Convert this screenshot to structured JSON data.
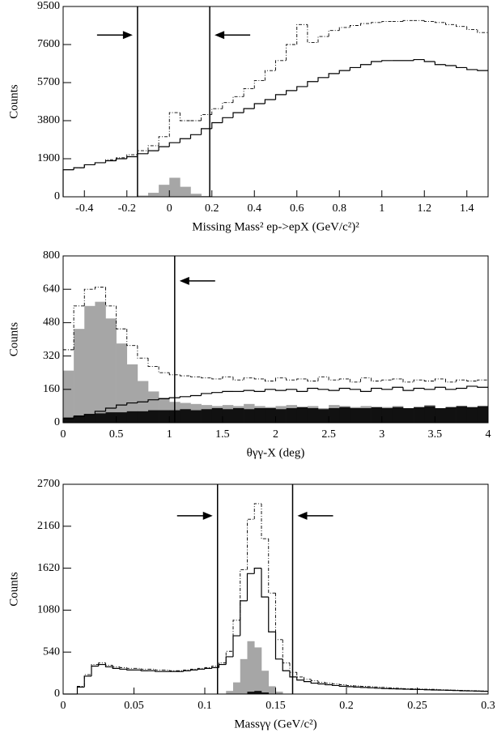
{
  "chart_data": [
    {
      "type": "histogram",
      "y_label": "Counts",
      "x_label": "Missing Mass² ep->epX (GeV/c²)²",
      "xlim": [
        -0.5,
        1.5
      ],
      "ylim": [
        0,
        9500
      ],
      "xticks": [
        -0.4,
        -0.2,
        0,
        0.2,
        0.4,
        0.6,
        0.8,
        1,
        1.2,
        1.4
      ],
      "yticks": [
        0,
        1900,
        3800,
        5700,
        7600,
        9500
      ],
      "cut_lines": [
        -0.15,
        0.19
      ],
      "bins": [
        -0.5,
        -0.45,
        -0.4,
        -0.35,
        -0.3,
        -0.25,
        -0.2,
        -0.15,
        -0.1,
        -0.05,
        0,
        0.05,
        0.1,
        0.15,
        0.2,
        0.25,
        0.3,
        0.35,
        0.4,
        0.45,
        0.5,
        0.55,
        0.6,
        0.65,
        0.7,
        0.75,
        0.8,
        0.85,
        0.9,
        0.95,
        1,
        1.05,
        1.1,
        1.15,
        1.2,
        1.25,
        1.3,
        1.35,
        1.4,
        1.45,
        1.5
      ],
      "series": [
        {
          "style": "fill",
          "color": "#a6a6a6",
          "values": [
            0,
            0,
            0,
            0,
            0,
            0,
            20,
            60,
            200,
            600,
            950,
            500,
            150,
            40,
            10,
            0,
            0,
            0,
            0,
            0,
            0,
            0,
            0,
            0,
            0,
            0,
            0,
            0,
            0,
            0,
            0,
            0,
            0,
            0,
            0,
            0,
            0,
            0,
            0,
            0
          ]
        },
        {
          "style": "fill",
          "color": "#111111",
          "values": [
            0,
            0,
            0,
            0,
            0,
            0,
            0,
            0,
            0,
            10,
            20,
            20,
            20,
            20,
            20,
            20,
            20,
            20,
            20,
            20,
            20,
            20,
            20,
            20,
            20,
            20,
            20,
            20,
            20,
            20,
            20,
            20,
            20,
            20,
            20,
            20,
            20,
            20,
            20,
            20
          ]
        },
        {
          "style": "solid",
          "color": "#000000",
          "values": [
            1350,
            1450,
            1600,
            1700,
            1800,
            1900,
            2000,
            2150,
            2300,
            2500,
            2700,
            2900,
            3100,
            3400,
            3700,
            3950,
            4200,
            4400,
            4650,
            4850,
            5100,
            5300,
            5500,
            5750,
            5950,
            6150,
            6300,
            6450,
            6600,
            6750,
            6800,
            6800,
            6800,
            6850,
            6750,
            6600,
            6550,
            6450,
            6350,
            6300
          ]
        },
        {
          "style": "dashdot",
          "color": "#000000",
          "values": [
            1350,
            1450,
            1600,
            1700,
            1850,
            1950,
            2100,
            2300,
            2550,
            3000,
            4200,
            3800,
            3800,
            4100,
            4400,
            4700,
            5000,
            5400,
            5800,
            6300,
            6800,
            7600,
            8600,
            7700,
            8000,
            8300,
            8450,
            8550,
            8650,
            8700,
            8750,
            8750,
            8800,
            8800,
            8750,
            8700,
            8600,
            8500,
            8350,
            8200
          ]
        }
      ]
    },
    {
      "type": "histogram",
      "y_label": "Counts",
      "x_label": "θγγ-X (deg)",
      "xlim": [
        0,
        4
      ],
      "ylim": [
        0,
        800
      ],
      "xticks": [
        0,
        0.5,
        1,
        1.5,
        2,
        2.5,
        3,
        3.5,
        4
      ],
      "yticks": [
        0,
        160,
        320,
        480,
        640,
        800
      ],
      "cut_lines": [
        1.05
      ],
      "bins": [
        0,
        0.1,
        0.2,
        0.3,
        0.4,
        0.5,
        0.6,
        0.7,
        0.8,
        0.9,
        1,
        1.1,
        1.2,
        1.3,
        1.4,
        1.5,
        1.6,
        1.7,
        1.8,
        1.9,
        2,
        2.1,
        2.2,
        2.3,
        2.4,
        2.5,
        2.6,
        2.7,
        2.8,
        2.9,
        3,
        3.1,
        3.2,
        3.3,
        3.4,
        3.5,
        3.6,
        3.7,
        3.8,
        3.9,
        4
      ],
      "series": [
        {
          "style": "fill",
          "color": "#a6a6a6",
          "values": [
            250,
            450,
            560,
            580,
            500,
            380,
            280,
            200,
            150,
            120,
            100,
            95,
            90,
            85,
            80,
            85,
            80,
            90,
            80,
            75,
            80,
            85,
            75,
            80,
            70,
            85,
            80,
            75,
            80,
            70,
            75,
            80,
            70,
            75,
            85,
            70,
            75,
            80,
            70,
            75
          ]
        },
        {
          "style": "fill",
          "color": "#111111",
          "values": [
            25,
            35,
            40,
            45,
            50,
            50,
            55,
            55,
            60,
            60,
            60,
            65,
            60,
            65,
            70,
            65,
            70,
            65,
            70,
            70,
            65,
            70,
            75,
            70,
            65,
            70,
            75,
            70,
            70,
            75,
            70,
            75,
            70,
            75,
            80,
            70,
            75,
            80,
            75,
            80
          ]
        },
        {
          "style": "solid",
          "color": "#000000",
          "values": [
            20,
            30,
            40,
            55,
            70,
            85,
            95,
            100,
            110,
            115,
            120,
            125,
            130,
            140,
            145,
            150,
            150,
            155,
            150,
            160,
            155,
            160,
            150,
            165,
            160,
            155,
            165,
            160,
            150,
            165,
            160,
            170,
            155,
            165,
            160,
            170,
            160,
            165,
            175,
            170
          ]
        },
        {
          "style": "dashdot",
          "color": "#000000",
          "values": [
            350,
            560,
            640,
            650,
            560,
            450,
            370,
            310,
            270,
            240,
            230,
            225,
            220,
            215,
            210,
            220,
            205,
            215,
            210,
            200,
            215,
            205,
            210,
            200,
            220,
            205,
            210,
            195,
            215,
            200,
            205,
            210,
            195,
            205,
            200,
            210,
            195,
            205,
            200,
            205
          ]
        }
      ]
    },
    {
      "type": "histogram",
      "y_label": "Counts",
      "x_label": "Massγγ (GeV/c²)",
      "xlim": [
        0,
        0.3
      ],
      "ylim": [
        0,
        2700
      ],
      "xticks": [
        0,
        0.05,
        0.1,
        0.15,
        0.2,
        0.25,
        0.3
      ],
      "yticks": [
        0,
        540,
        1080,
        1620,
        2160,
        2700
      ],
      "cut_lines": [
        0.109,
        0.162
      ],
      "bins": [
        0,
        0.005,
        0.01,
        0.015,
        0.02,
        0.025,
        0.03,
        0.035,
        0.04,
        0.045,
        0.05,
        0.055,
        0.06,
        0.065,
        0.07,
        0.075,
        0.08,
        0.085,
        0.09,
        0.095,
        0.1,
        0.105,
        0.11,
        0.115,
        0.12,
        0.125,
        0.13,
        0.135,
        0.14,
        0.145,
        0.15,
        0.155,
        0.16,
        0.165,
        0.17,
        0.175,
        0.18,
        0.185,
        0.19,
        0.195,
        0.2,
        0.205,
        0.21,
        0.215,
        0.22,
        0.225,
        0.23,
        0.235,
        0.24,
        0.245,
        0.25,
        0.255,
        0.26,
        0.265,
        0.27,
        0.275,
        0.28,
        0.285,
        0.29,
        0.295,
        0.3
      ],
      "series": [
        {
          "style": "fill",
          "color": "#a6a6a6",
          "values": [
            0,
            0,
            0,
            0,
            0,
            0,
            0,
            0,
            0,
            0,
            0,
            0,
            0,
            0,
            0,
            0,
            0,
            0,
            0,
            0,
            0,
            0,
            0,
            40,
            150,
            450,
            680,
            600,
            300,
            100,
            30,
            0,
            0,
            0,
            0,
            0,
            0,
            0,
            0,
            0,
            0,
            0,
            0,
            0,
            0,
            0,
            0,
            0,
            0,
            0,
            0,
            0,
            0,
            0,
            0,
            0,
            0,
            0,
            0,
            0
          ]
        },
        {
          "style": "fill",
          "color": "#111111",
          "values": [
            0,
            0,
            0,
            0,
            0,
            0,
            0,
            0,
            0,
            0,
            0,
            0,
            0,
            0,
            0,
            0,
            0,
            0,
            0,
            0,
            0,
            0,
            0,
            0,
            0,
            0,
            30,
            40,
            20,
            0,
            0,
            0,
            0,
            0,
            0,
            0,
            0,
            0,
            0,
            0,
            0,
            0,
            0,
            0,
            0,
            0,
            0,
            0,
            0,
            0,
            0,
            0,
            0,
            0,
            0,
            0,
            0,
            0,
            0,
            0
          ]
        },
        {
          "style": "solid",
          "color": "#000000",
          "values": [
            0,
            0,
            90,
            230,
            360,
            380,
            350,
            330,
            320,
            310,
            310,
            300,
            300,
            290,
            290,
            290,
            290,
            300,
            310,
            320,
            330,
            340,
            380,
            480,
            750,
            1200,
            1550,
            1620,
            1250,
            800,
            450,
            300,
            220,
            180,
            160,
            140,
            130,
            120,
            110,
            100,
            95,
            90,
            85,
            80,
            75,
            70,
            68,
            65,
            62,
            60,
            58,
            55,
            52,
            50,
            48,
            45,
            42,
            40,
            38,
            35
          ]
        },
        {
          "style": "dashdot",
          "color": "#000000",
          "values": [
            0,
            0,
            100,
            250,
            380,
            400,
            370,
            350,
            340,
            330,
            330,
            320,
            320,
            310,
            310,
            300,
            300,
            310,
            320,
            330,
            340,
            360,
            400,
            550,
            950,
            1600,
            2250,
            2450,
            2000,
            1300,
            700,
            400,
            280,
            220,
            190,
            170,
            150,
            140,
            130,
            120,
            110,
            105,
            100,
            95,
            90,
            85,
            80,
            75,
            70,
            68,
            65,
            62,
            60,
            55,
            52,
            50,
            48,
            45,
            42,
            40
          ]
        }
      ]
    }
  ]
}
